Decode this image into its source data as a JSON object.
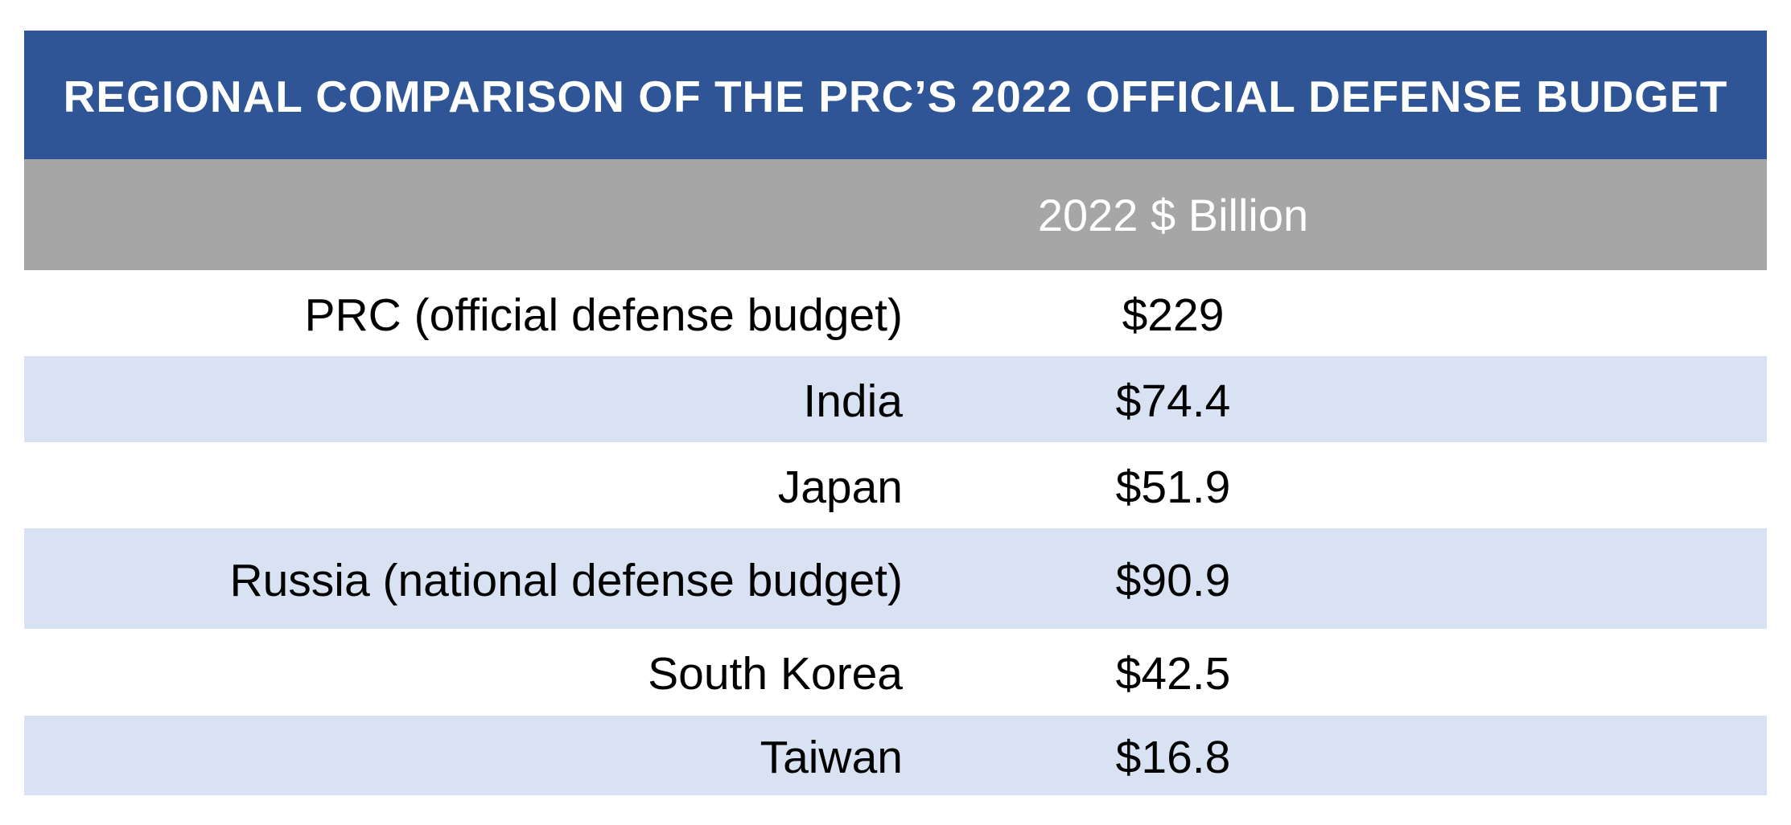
{
  "colors": {
    "title_bg": "#2f5597",
    "header_bg": "#a6a6a6",
    "band_bg": "#d9e2f3",
    "row_bg": "#ffffff"
  },
  "chart_data": {
    "type": "table",
    "title": "REGIONAL COMPARISON OF THE PRC’S 2022 OFFICIAL DEFENSE BUDGET",
    "columns": [
      "",
      "2022 $ Billion"
    ],
    "rows": [
      {
        "label": "PRC (official defense budget)",
        "value": "$229"
      },
      {
        "label": "India",
        "value": "$74.4"
      },
      {
        "label": "Japan",
        "value": "$51.9"
      },
      {
        "label": "Russia (national defense budget)",
        "value": "$90.9"
      },
      {
        "label": "South Korea",
        "value": "$42.5"
      },
      {
        "label": "Taiwan",
        "value": "$16.8"
      }
    ]
  }
}
